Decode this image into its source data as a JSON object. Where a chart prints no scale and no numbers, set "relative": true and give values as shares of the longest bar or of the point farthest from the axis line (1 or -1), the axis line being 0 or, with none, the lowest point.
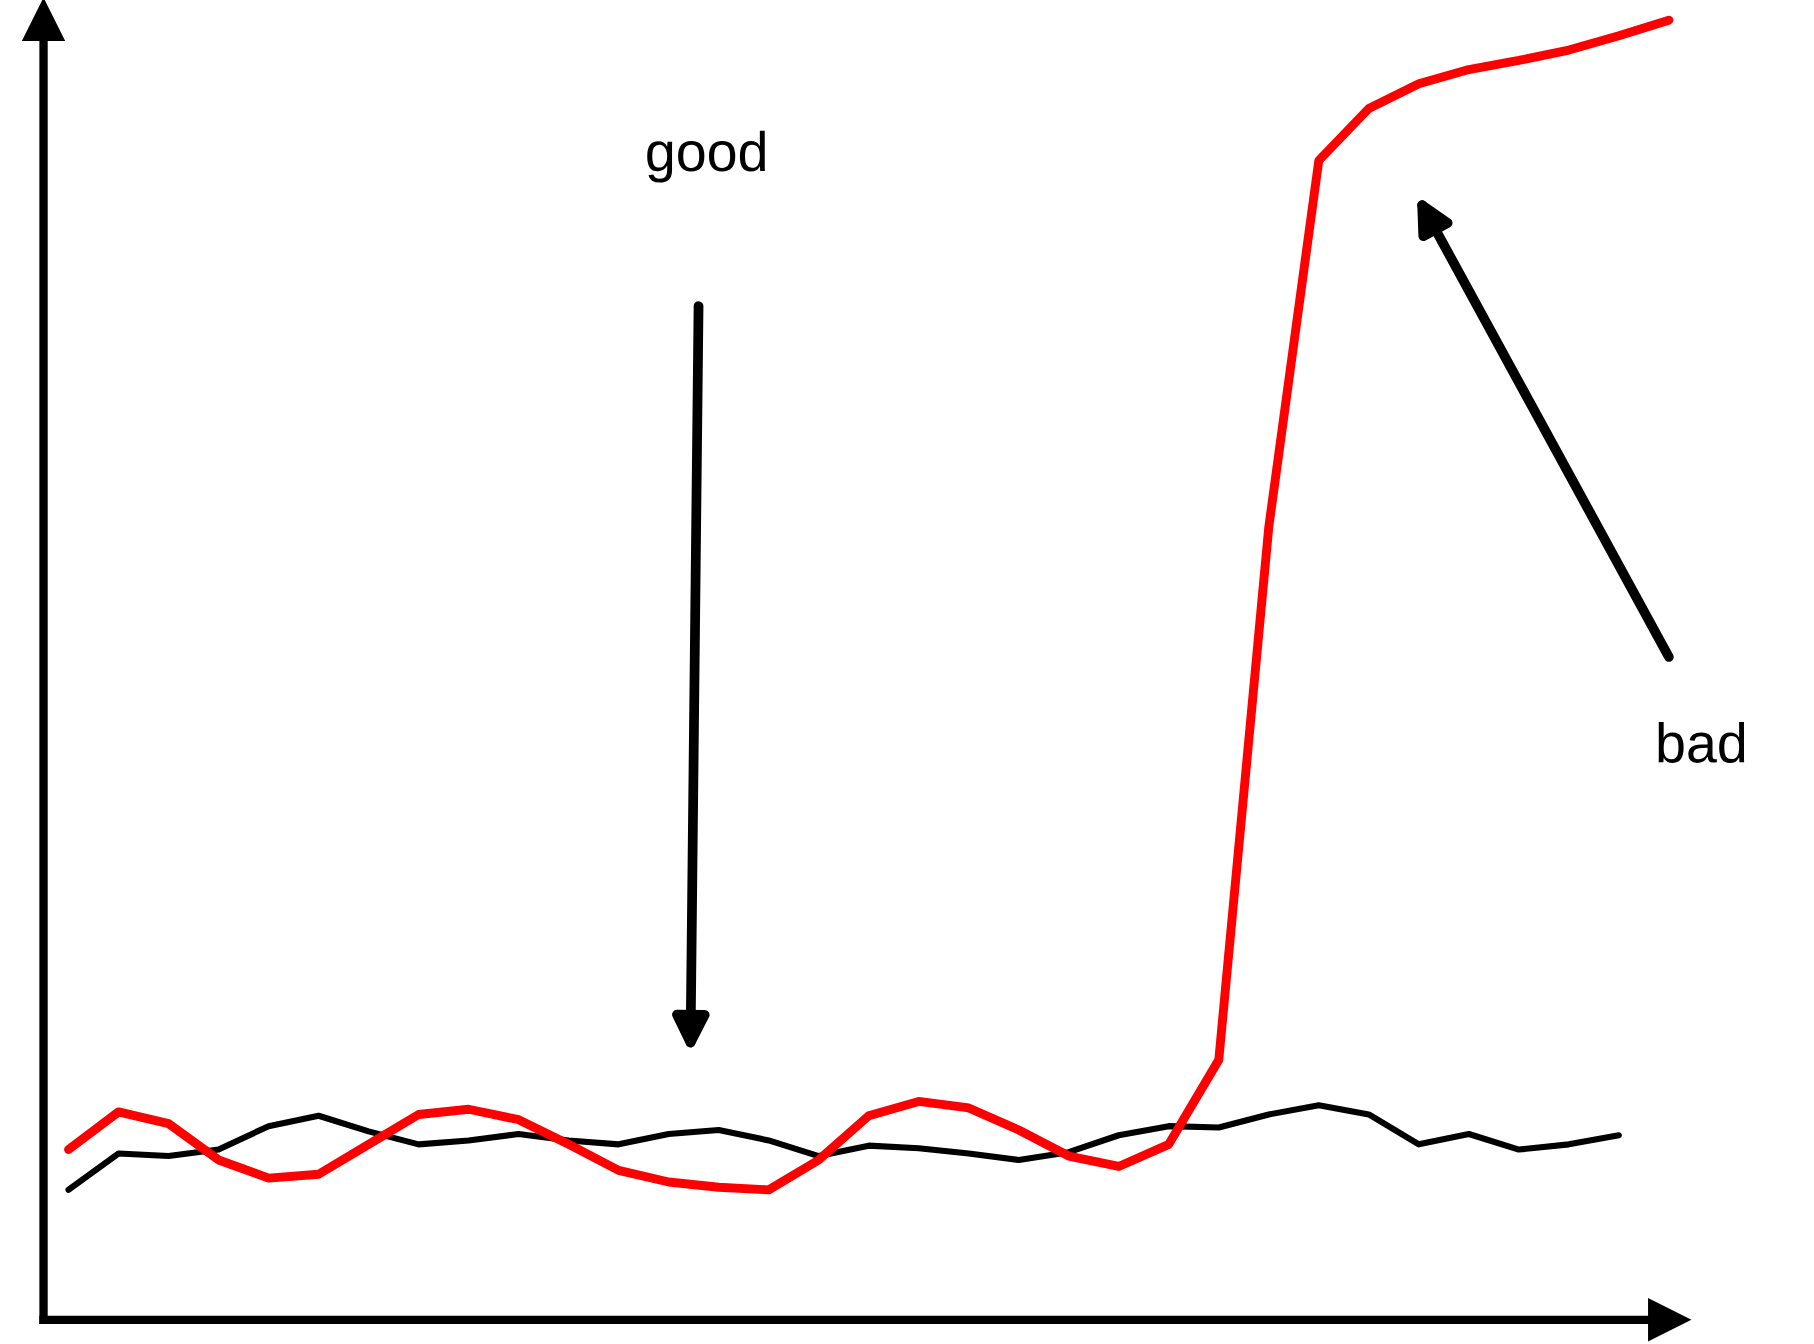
{
  "chart_data": {
    "type": "line",
    "relative": true,
    "line_style": "solid",
    "marker": "none",
    "categories": [
      null,
      null,
      null,
      null,
      null,
      null,
      null,
      null,
      null,
      null,
      null,
      null,
      null,
      null,
      null,
      null,
      null,
      null,
      null,
      null,
      null,
      null,
      null,
      null,
      null,
      null,
      null,
      null,
      null,
      null,
      null,
      null,
      null
    ],
    "annotations": [
      "good",
      "bad"
    ],
    "series": [
      {
        "color": "#000000",
        "values": [
          0.1,
          0.128,
          0.126,
          0.131,
          0.149,
          0.157,
          0.145,
          0.135,
          0.138,
          0.143,
          0.138,
          0.135,
          0.143,
          0.146,
          0.138,
          0.126,
          0.134,
          0.132,
          0.128,
          0.123,
          0.129,
          0.142,
          0.149,
          0.148,
          0.158,
          0.165,
          0.158,
          0.135,
          0.143,
          0.131,
          0.135,
          0.142,
          null
        ]
      },
      {
        "color": "#ff0000",
        "values": [
          0.131,
          0.16,
          0.151,
          0.123,
          0.109,
          0.112,
          0.135,
          0.158,
          0.162,
          0.154,
          0.135,
          0.115,
          0.106,
          0.102,
          0.1,
          0.123,
          0.157,
          0.168,
          0.163,
          0.146,
          0.126,
          0.118,
          0.135,
          0.2,
          0.61,
          0.892,
          0.932,
          0.951,
          0.962,
          0.969,
          0.977,
          0.988,
          1.0
        ]
      }
    ]
  }
}
